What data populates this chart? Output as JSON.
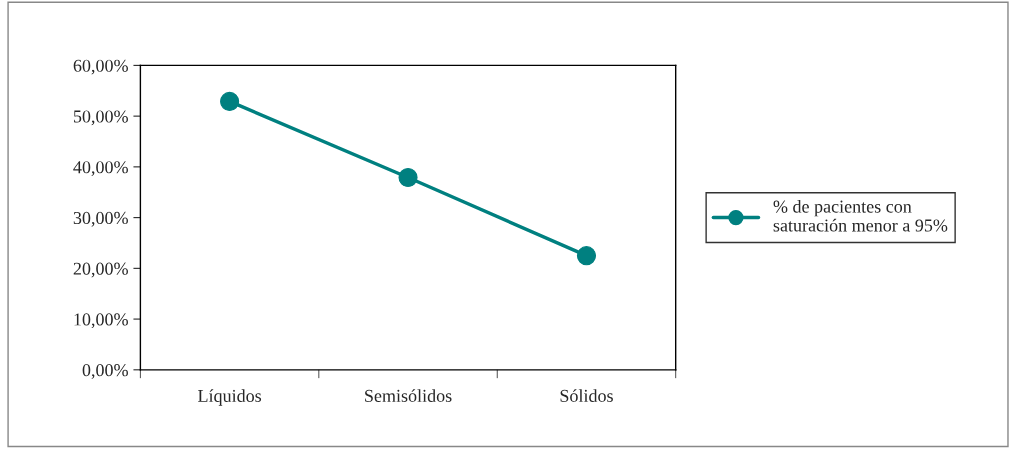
{
  "chart_data": {
    "type": "line",
    "categories": [
      "Líquidos",
      "Semisólidos",
      "Sólidos"
    ],
    "series": [
      {
        "name": "% de pacientes con\nsaturación menor a 95%",
        "color": "#008080",
        "values": [
          52.9,
          37.9,
          22.5
        ]
      }
    ],
    "ylim": [
      0,
      60
    ],
    "yticks": [
      {
        "value": 0,
        "label": "0,00%"
      },
      {
        "value": 10,
        "label": "10,00%"
      },
      {
        "value": 20,
        "label": "20,00%"
      },
      {
        "value": 30,
        "label": "30,00%"
      },
      {
        "value": 40,
        "label": "40,00%"
      },
      {
        "value": 50,
        "label": "50,00%"
      },
      {
        "value": 60,
        "label": "60,00%"
      }
    ],
    "grid": false,
    "legend": "right",
    "marker": "circle",
    "line_style": "solid"
  }
}
